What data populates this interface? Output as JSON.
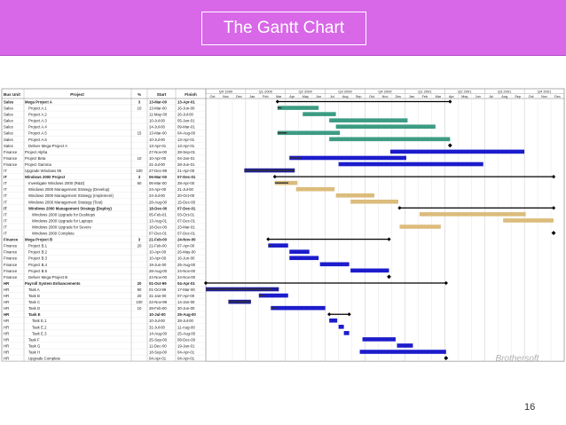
{
  "slide": {
    "title": "The Gantt Chart",
    "number": "16",
    "accent_color": "#d868e8",
    "watermark": "Brothersoft"
  },
  "table": {
    "headers": [
      "Bus Unit",
      "Project",
      "%",
      "Start",
      "Finish"
    ],
    "rows": [
      {
        "unit": "Sales",
        "name": "Mega Project A",
        "pct": "3",
        "start": "13-Mar-00",
        "finish": "13-Apr-01",
        "bold": true,
        "indent": 0
      },
      {
        "unit": "Sales",
        "name": "Project A.1",
        "pct": "10",
        "start": "13-Mar-00",
        "finish": "16-Jun-00",
        "bold": false,
        "indent": 1
      },
      {
        "unit": "Sales",
        "name": "Project A.2",
        "pct": "",
        "start": "11-May-00",
        "finish": "26-Jul-00",
        "bold": false,
        "indent": 1
      },
      {
        "unit": "Sales",
        "name": "Project A.3",
        "pct": "",
        "start": "10-Jul-00",
        "finish": "05-Jan-01",
        "bold": false,
        "indent": 1
      },
      {
        "unit": "Sales",
        "name": "Project A.4",
        "pct": "",
        "start": "24-Jul-00",
        "finish": "09-Mar-01",
        "bold": false,
        "indent": 1
      },
      {
        "unit": "Sales",
        "name": "Project A.5",
        "pct": "15",
        "start": "13-Mar-00",
        "finish": "04-Aug-00",
        "bold": false,
        "indent": 1
      },
      {
        "unit": "Sales",
        "name": "Project A.6",
        "pct": "",
        "start": "10-Jul-00",
        "finish": "13-Apr-01",
        "bold": false,
        "indent": 1
      },
      {
        "unit": "Sales",
        "name": "Deliver Mega-Project A",
        "pct": "",
        "start": "13-Apr-01",
        "finish": "13-Apr-01",
        "bold": false,
        "indent": 1
      },
      {
        "unit": "Finance",
        "name": "Project Alpha",
        "pct": "",
        "start": "27-Nov-00",
        "finish": "28-Sep-01",
        "bold": false,
        "indent": 0
      },
      {
        "unit": "Finance",
        "name": "Project Beta",
        "pct": "10",
        "start": "10-Apr-00",
        "finish": "04-Jan-01",
        "bold": false,
        "indent": 0
      },
      {
        "unit": "Finance",
        "name": "Project Gamma",
        "pct": "",
        "start": "31-Jul-00",
        "finish": "28-Jun-01",
        "bold": false,
        "indent": 0
      },
      {
        "unit": "IT",
        "name": "Upgrade Windows 95",
        "pct": "100",
        "start": "27-Dec-99",
        "finish": "21-Apr-00",
        "bold": false,
        "indent": 0
      },
      {
        "unit": "IT",
        "name": "Windows 2000 Project",
        "pct": "3",
        "start": "06-Mar-00",
        "finish": "07-Dec-01",
        "bold": true,
        "indent": 0
      },
      {
        "unit": "IT",
        "name": "Investigate Windows 2000 (R&D)",
        "pct": "60",
        "start": "06-Mar-00",
        "finish": "28-Apr-00",
        "bold": false,
        "indent": 1
      },
      {
        "unit": "IT",
        "name": "Windows 2000 Management Strategy (Develop)",
        "pct": "",
        "start": "24-Apr-00",
        "finish": "21-Jul-00",
        "bold": false,
        "indent": 1
      },
      {
        "unit": "IT",
        "name": "Windows 2000 Management Strategy (Implement)",
        "pct": "",
        "start": "24-Jul-00",
        "finish": "20-Oct-00",
        "bold": false,
        "indent": 1
      },
      {
        "unit": "IT",
        "name": "Windows 2000 Management Strategy (Test)",
        "pct": "",
        "start": "28-Aug-00",
        "finish": "15-Dec-00",
        "bold": false,
        "indent": 1
      },
      {
        "unit": "IT",
        "name": "Windows 2000 Management Strategy (Deploy)",
        "pct": "",
        "start": "18-Dec-00",
        "finish": "07-Dec-01",
        "bold": true,
        "indent": 1
      },
      {
        "unit": "IT",
        "name": "Windows 2000 Upgrade for Desktops",
        "pct": "",
        "start": "05-Feb-01",
        "finish": "03-Oct-01",
        "bold": false,
        "indent": 2
      },
      {
        "unit": "IT",
        "name": "Windows 2000 Upgrade for Laptops",
        "pct": "",
        "start": "13-Aug-01",
        "finish": "07-Dec-01",
        "bold": false,
        "indent": 2
      },
      {
        "unit": "IT",
        "name": "Windows 2000 Upgrade for Severs",
        "pct": "",
        "start": "18-Dec-00",
        "finish": "23-Mar-01",
        "bold": false,
        "indent": 2
      },
      {
        "unit": "IT",
        "name": "Windows 2000 Complete",
        "pct": "",
        "start": "07-Dec-01",
        "finish": "07-Dec-01",
        "bold": false,
        "indent": 2
      },
      {
        "unit": "Finance",
        "name": "Mega Project B",
        "pct": "3",
        "start": "21-Feb-00",
        "finish": "24-Nov-00",
        "bold": true,
        "indent": 0
      },
      {
        "unit": "Finance",
        "name": "Project B.1",
        "pct": "20",
        "start": "21-Feb-00",
        "finish": "07-Apr-00",
        "bold": false,
        "indent": 1
      },
      {
        "unit": "Finance",
        "name": "Project B.2",
        "pct": "",
        "start": "10-Apr-00",
        "finish": "26-May-00",
        "bold": false,
        "indent": 1
      },
      {
        "unit": "Finance",
        "name": "Project B.3",
        "pct": "",
        "start": "10-Apr-00",
        "finish": "16-Jun-00",
        "bold": false,
        "indent": 1
      },
      {
        "unit": "Finance",
        "name": "Project B.4",
        "pct": "",
        "start": "19-Jun-00",
        "finish": "25-Aug-00",
        "bold": false,
        "indent": 1
      },
      {
        "unit": "Finance",
        "name": "Project B.5",
        "pct": "",
        "start": "28-Aug-00",
        "finish": "24-Nov-00",
        "bold": false,
        "indent": 1
      },
      {
        "unit": "Finance",
        "name": "Deliver Mega-Project B",
        "pct": "",
        "start": "24-Nov-00",
        "finish": "24-Nov-00",
        "bold": false,
        "indent": 1
      },
      {
        "unit": "HR",
        "name": "Payroll System Enhancements",
        "pct": "20",
        "start": "01-Oct-99",
        "finish": "04-Apr-01",
        "bold": true,
        "indent": 0
      },
      {
        "unit": "HR",
        "name": "Task A",
        "pct": "90",
        "start": "01-Oct-99",
        "finish": "17-Mar-00",
        "bold": false,
        "indent": 1
      },
      {
        "unit": "HR",
        "name": "Task B",
        "pct": "20",
        "start": "31-Jan-00",
        "finish": "07-Apr-00",
        "bold": false,
        "indent": 1
      },
      {
        "unit": "HR",
        "name": "Task C",
        "pct": "100",
        "start": "22-Nov-99",
        "finish": "14-Jan-00",
        "bold": false,
        "indent": 1
      },
      {
        "unit": "HR",
        "name": "Task D",
        "pct": "10",
        "start": "28-Feb-00",
        "finish": "30-Jun-00",
        "bold": false,
        "indent": 1
      },
      {
        "unit": "HR",
        "name": "Task E",
        "pct": "",
        "start": "10-Jul-00",
        "finish": "25-Aug-00",
        "bold": true,
        "indent": 1
      },
      {
        "unit": "HR",
        "name": "Task E.1",
        "pct": "",
        "start": "10-Jul-00",
        "finish": "28-Jul-00",
        "bold": false,
        "indent": 2
      },
      {
        "unit": "HR",
        "name": "Task E.2",
        "pct": "",
        "start": "31-Jul-00",
        "finish": "11-Aug-00",
        "bold": false,
        "indent": 2
      },
      {
        "unit": "HR",
        "name": "Task E.3",
        "pct": "",
        "start": "14-Aug-00",
        "finish": "25-Aug-00",
        "bold": false,
        "indent": 2
      },
      {
        "unit": "HR",
        "name": "Task F",
        "pct": "",
        "start": "25-Sep-00",
        "finish": "08-Dec-00",
        "bold": false,
        "indent": 1
      },
      {
        "unit": "HR",
        "name": "Task G",
        "pct": "",
        "start": "11-Dec-00",
        "finish": "19-Jan-01",
        "bold": false,
        "indent": 1
      },
      {
        "unit": "HR",
        "name": "Task H",
        "pct": "",
        "start": "18-Sep-00",
        "finish": "04-Apr-01",
        "bold": false,
        "indent": 1
      },
      {
        "unit": "HR",
        "name": "Upgrade Complete",
        "pct": "",
        "start": "04-Apr-01",
        "finish": "04-Apr-01",
        "bold": false,
        "indent": 1
      }
    ]
  },
  "timeline": {
    "quarters": [
      "Q4 1999",
      "Q1 2000",
      "Q2 2000",
      "Q3 2000",
      "Q4 2000",
      "Q1 2001",
      "Q2 2001",
      "Q3 2001",
      "Q4 2001"
    ],
    "months": [
      "Oct",
      "Nov",
      "Dec",
      "Jan",
      "Feb",
      "Mar",
      "Apr",
      "May",
      "Jun",
      "Jul",
      "Aug",
      "Sep",
      "Oct",
      "Nov",
      "Dec",
      "Jan",
      "Feb",
      "Mar",
      "Apr",
      "May",
      "Jun",
      "Jul",
      "Aug",
      "Sep",
      "Oct",
      "Nov",
      "Dec"
    ]
  },
  "bars": [
    {
      "row": 0,
      "type": "summary",
      "start": 5.4,
      "end": 18.4,
      "color": "#000000"
    },
    {
      "row": 1,
      "type": "task",
      "start": 5.4,
      "end": 8.5,
      "color": "#3c9c84",
      "done": 0.1
    },
    {
      "row": 2,
      "type": "task",
      "start": 7.3,
      "end": 9.8,
      "color": "#3c9c84"
    },
    {
      "row": 3,
      "type": "task",
      "start": 9.3,
      "end": 15.2,
      "color": "#3c9c84"
    },
    {
      "row": 4,
      "type": "task",
      "start": 9.8,
      "end": 17.3,
      "color": "#3c9c84"
    },
    {
      "row": 5,
      "type": "task",
      "start": 5.4,
      "end": 10.1,
      "color": "#3c9c84",
      "done": 0.15
    },
    {
      "row": 6,
      "type": "task",
      "start": 9.3,
      "end": 18.4,
      "color": "#3c9c84"
    },
    {
      "row": 7,
      "type": "milestone",
      "start": 18.4,
      "end": 18.4,
      "color": "#000000"
    },
    {
      "row": 8,
      "type": "task",
      "start": 13.9,
      "end": 24.0,
      "color": "#1c1ccc"
    },
    {
      "row": 9,
      "type": "task",
      "start": 6.3,
      "end": 15.1,
      "color": "#1c1ccc",
      "done": 0.1
    },
    {
      "row": 10,
      "type": "task",
      "start": 10.0,
      "end": 20.9,
      "color": "#1c1ccc"
    },
    {
      "row": 11,
      "type": "task",
      "start": 2.9,
      "end": 6.7,
      "color": "#1c1c9c",
      "done": 1.0
    },
    {
      "row": 12,
      "type": "summary",
      "start": 5.2,
      "end": 26.2,
      "color": "#000000"
    },
    {
      "row": 13,
      "type": "task",
      "start": 5.2,
      "end": 6.9,
      "color": "#dcbc7c",
      "done": 0.6
    },
    {
      "row": 14,
      "type": "task",
      "start": 6.8,
      "end": 9.7,
      "color": "#dcbc7c"
    },
    {
      "row": 15,
      "type": "task",
      "start": 9.8,
      "end": 12.7,
      "color": "#dcbc7c"
    },
    {
      "row": 16,
      "type": "task",
      "start": 10.9,
      "end": 14.5,
      "color": "#dcbc7c"
    },
    {
      "row": 17,
      "type": "summary",
      "start": 14.6,
      "end": 26.2,
      "color": "#000000"
    },
    {
      "row": 18,
      "type": "task",
      "start": 16.1,
      "end": 24.1,
      "color": "#dcbc7c"
    },
    {
      "row": 19,
      "type": "task",
      "start": 22.4,
      "end": 26.2,
      "color": "#dcbc7c"
    },
    {
      "row": 20,
      "type": "task",
      "start": 14.6,
      "end": 17.7,
      "color": "#dcbc7c"
    },
    {
      "row": 21,
      "type": "milestone",
      "start": 26.2,
      "end": 26.2,
      "color": "#000000"
    },
    {
      "row": 22,
      "type": "summary",
      "start": 4.7,
      "end": 13.8,
      "color": "#000000"
    },
    {
      "row": 23,
      "type": "task",
      "start": 4.7,
      "end": 6.2,
      "color": "#1c1ccc",
      "done": 0.2
    },
    {
      "row": 24,
      "type": "task",
      "start": 6.3,
      "end": 7.8,
      "color": "#1c1ccc"
    },
    {
      "row": 25,
      "type": "task",
      "start": 6.3,
      "end": 8.5,
      "color": "#1c1ccc"
    },
    {
      "row": 26,
      "type": "task",
      "start": 8.6,
      "end": 10.8,
      "color": "#1c1ccc"
    },
    {
      "row": 27,
      "type": "task",
      "start": 10.9,
      "end": 13.8,
      "color": "#1c1ccc"
    },
    {
      "row": 28,
      "type": "milestone",
      "start": 13.8,
      "end": 13.8,
      "color": "#000000"
    },
    {
      "row": 29,
      "type": "summary",
      "start": 0.0,
      "end": 18.1,
      "color": "#000000"
    },
    {
      "row": 30,
      "type": "task",
      "start": 0.0,
      "end": 5.5,
      "color": "#1c1c9c",
      "done": 0.9
    },
    {
      "row": 31,
      "type": "task",
      "start": 4.0,
      "end": 6.2,
      "color": "#1c1ccc",
      "done": 0.2
    },
    {
      "row": 32,
      "type": "task",
      "start": 1.7,
      "end": 3.4,
      "color": "#1c1c9c",
      "done": 1.0
    },
    {
      "row": 33,
      "type": "task",
      "start": 4.9,
      "end": 9.0,
      "color": "#1c1ccc",
      "done": 0.1
    },
    {
      "row": 34,
      "type": "summary",
      "start": 9.3,
      "end": 10.8,
      "color": "#000000"
    },
    {
      "row": 35,
      "type": "task",
      "start": 9.3,
      "end": 9.9,
      "color": "#1c1ccc"
    },
    {
      "row": 36,
      "type": "task",
      "start": 10.0,
      "end": 10.4,
      "color": "#1c1ccc"
    },
    {
      "row": 37,
      "type": "task",
      "start": 10.4,
      "end": 10.8,
      "color": "#1c1ccc"
    },
    {
      "row": 38,
      "type": "task",
      "start": 11.8,
      "end": 14.3,
      "color": "#1c1ccc"
    },
    {
      "row": 39,
      "type": "task",
      "start": 14.4,
      "end": 15.6,
      "color": "#1c1ccc"
    },
    {
      "row": 40,
      "type": "task",
      "start": 11.6,
      "end": 18.1,
      "color": "#1c1ccc"
    },
    {
      "row": 41,
      "type": "milestone",
      "start": 18.1,
      "end": 18.1,
      "color": "#000000"
    }
  ]
}
